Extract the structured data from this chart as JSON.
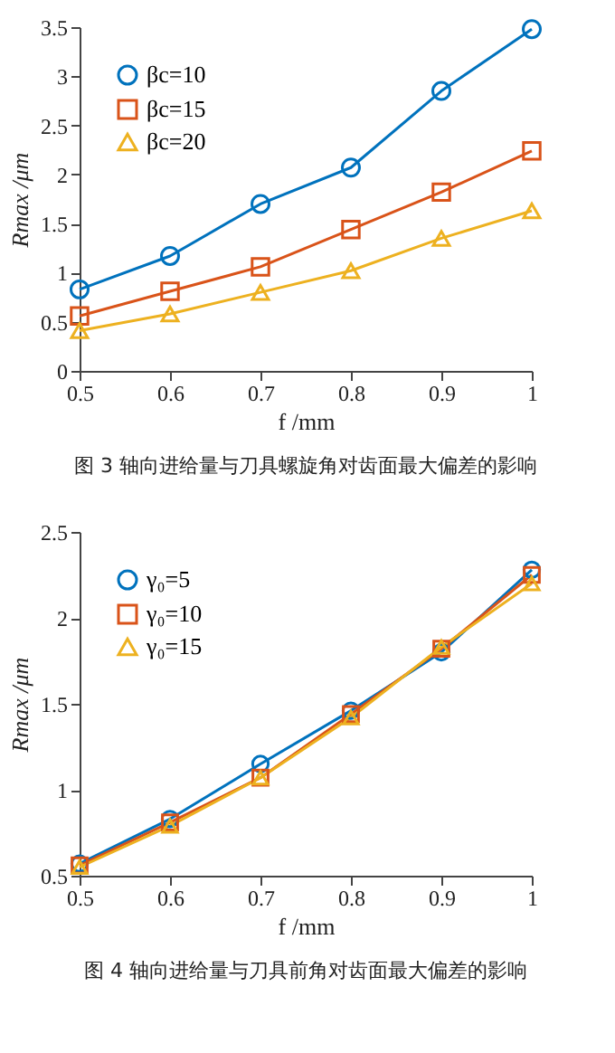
{
  "chart_data": [
    {
      "type": "line",
      "xlabel": "f /mm",
      "ylabel": "Rmax /μm",
      "x": [
        0.5,
        0.6,
        0.7,
        0.8,
        0.9,
        1
      ],
      "xlim": [
        0.5,
        1
      ],
      "xticks": [
        0.5,
        0.6,
        0.7,
        0.8,
        0.9,
        1
      ],
      "ylim": [
        0,
        3.5
      ],
      "yticks": [
        0,
        0.5,
        1,
        1.5,
        2,
        2.5,
        3,
        3.5
      ],
      "grid": false,
      "legend": "top left",
      "annotations": [
        "图 3 轴向进给量与刀具螺旋角对齿面最大偏差的影响"
      ],
      "series": [
        {
          "name": "βc=10",
          "color": "#0072bd",
          "marker": "circle",
          "values": [
            0.83,
            1.17,
            1.7,
            2.07,
            2.85,
            3.48
          ]
        },
        {
          "name": "βc=15",
          "color": "#d95319",
          "marker": "square",
          "values": [
            0.56,
            0.81,
            1.06,
            1.44,
            1.82,
            2.24
          ]
        },
        {
          "name": "βc=20",
          "color": "#edb120",
          "marker": "triangle",
          "values": [
            0.41,
            0.58,
            0.8,
            1.02,
            1.35,
            1.63
          ]
        }
      ]
    },
    {
      "type": "line",
      "xlabel": "f /mm",
      "ylabel": "Rmax /μm",
      "x": [
        0.5,
        0.6,
        0.7,
        0.8,
        0.9,
        1
      ],
      "xlim": [
        0.5,
        1
      ],
      "xticks": [
        0.5,
        0.6,
        0.7,
        0.8,
        0.9,
        1
      ],
      "ylim": [
        0.5,
        2.5
      ],
      "yticks": [
        0.5,
        1,
        1.5,
        2,
        2.5
      ],
      "grid": false,
      "legend": "top left",
      "annotations": [
        "图 4 轴向进给量与刀具前角对齿面最大偏差的影响"
      ],
      "series": [
        {
          "name": "γ₀=5",
          "color": "#0072bd",
          "marker": "circle",
          "values": [
            0.57,
            0.83,
            1.15,
            1.46,
            1.8,
            2.28
          ]
        },
        {
          "name": "γ₀=10",
          "color": "#d95319",
          "marker": "square",
          "values": [
            0.56,
            0.81,
            1.07,
            1.44,
            1.82,
            2.25
          ]
        },
        {
          "name": "γ₀=15",
          "color": "#edb120",
          "marker": "triangle",
          "values": [
            0.55,
            0.79,
            1.07,
            1.42,
            1.83,
            2.2
          ]
        }
      ]
    }
  ]
}
